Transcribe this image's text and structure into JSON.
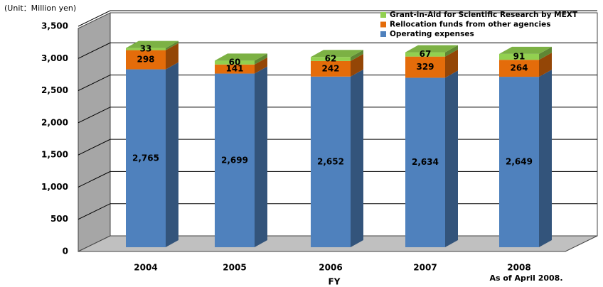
{
  "chart_data": {
    "type": "bar3d_stacked",
    "unit_label": "(Unit：Million yen)",
    "x_label": "FY",
    "note": "As of April 2008.",
    "categories": [
      "2004",
      "2005",
      "2006",
      "2007",
      "2008"
    ],
    "series": [
      {
        "name": "Operating expenses",
        "color": "#4f81bd",
        "values": [
          2765,
          2699,
          2652,
          2634,
          2649
        ],
        "value_labels": [
          "2,765",
          "2,699",
          "2,652",
          "2,634",
          "2,649"
        ]
      },
      {
        "name": "Rellocation funds from other agencies",
        "color": "#e46c0a",
        "values": [
          298,
          141,
          242,
          329,
          264
        ]
      },
      {
        "name": "Grant-in-Aid for Scientific Research by MEXT",
        "color": "#92d050",
        "values": [
          33,
          60,
          62,
          67,
          91
        ]
      }
    ],
    "ylim": [
      0,
      3500
    ],
    "yticks": [
      0,
      500,
      {
        "value": 1000,
        "label": "1,000"
      },
      {
        "value": 1500,
        "label": "1,500"
      },
      {
        "value": 2000,
        "label": "2,000"
      },
      {
        "value": 2500,
        "label": "2,500"
      },
      {
        "value": 3000,
        "label": "3,000"
      },
      {
        "value": 3500,
        "label": "3,500"
      }
    ],
    "grid": true
  }
}
